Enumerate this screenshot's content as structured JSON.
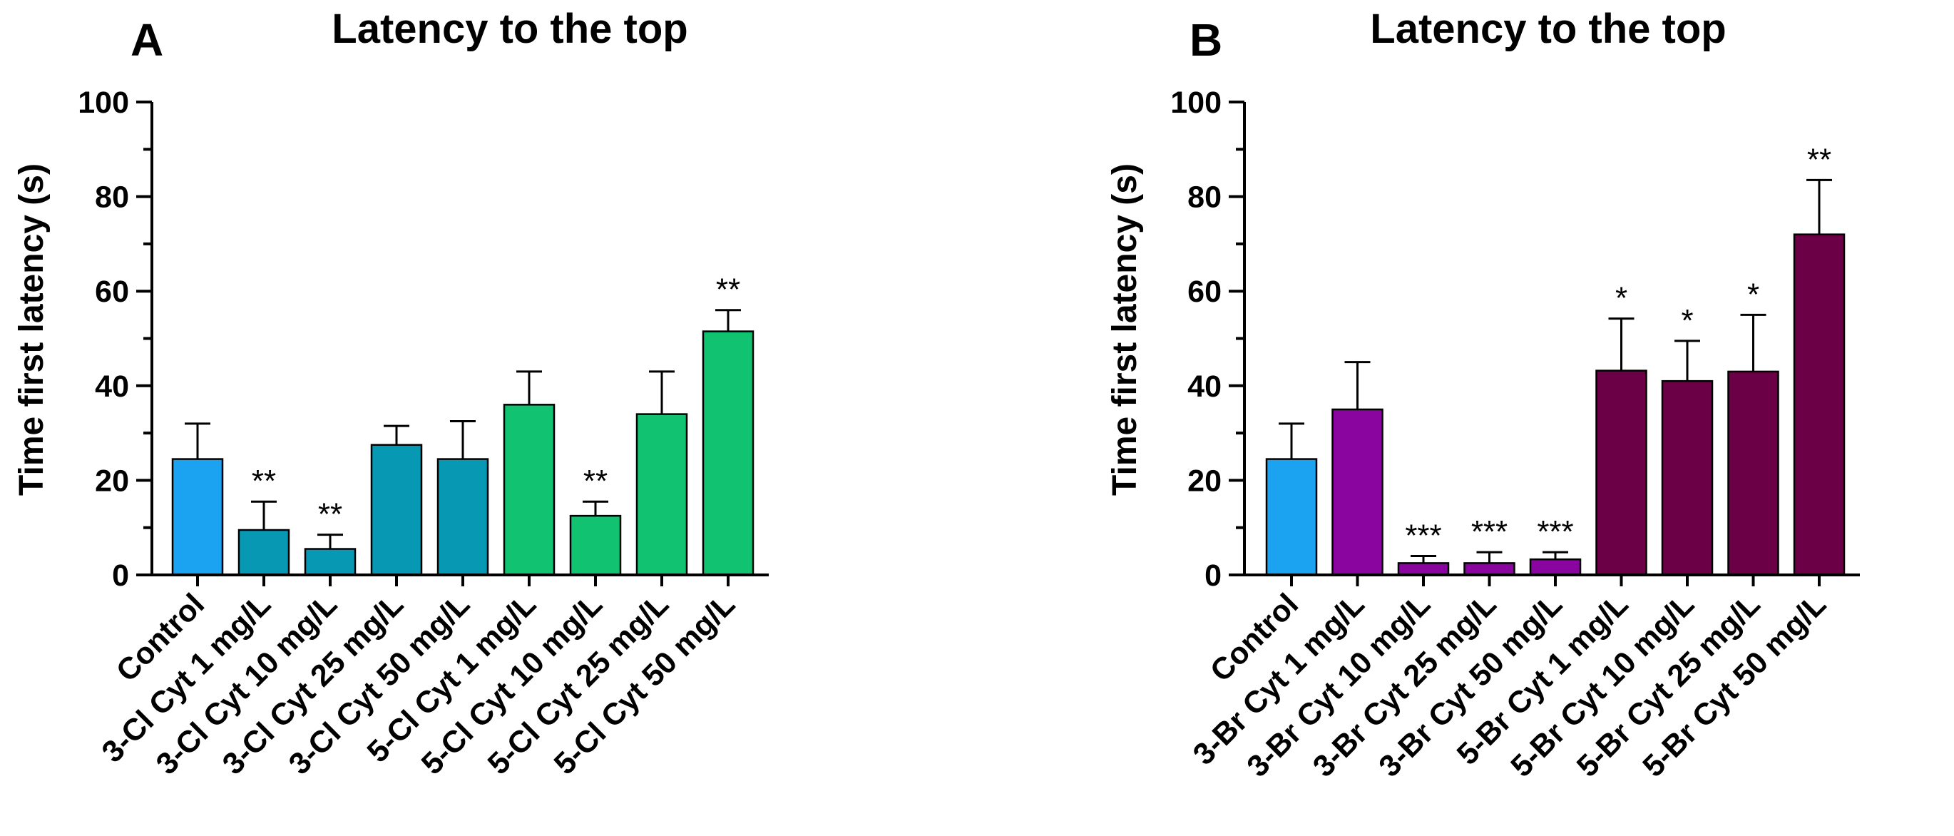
{
  "chart_data": [
    {
      "type": "bar",
      "panel": "A",
      "title": "Latency to the top",
      "ylabel": "Time first latency (s)",
      "xlabel": "",
      "ylim": [
        0,
        100
      ],
      "yticks": [
        0,
        20,
        40,
        60,
        80,
        100
      ],
      "categories": [
        "Control",
        "3-Cl Cyt 1 mg/L",
        "3-Cl Cyt 10 mg/L",
        "3-Cl Cyt 25 mg/L",
        "3-Cl Cyt 50 mg/L",
        "5-Cl Cyt 1 mg/L",
        "5-Cl Cyt 10 mg/L",
        "5-Cl Cyt 25 mg/L",
        "5-Cl Cyt 50 mg/L"
      ],
      "values": [
        24.5,
        9.5,
        5.5,
        27.5,
        24.5,
        36,
        12.5,
        34,
        51.5
      ],
      "errors": [
        7.5,
        6,
        3,
        4,
        8,
        7,
        3,
        9,
        4.5
      ],
      "significance": [
        "",
        "**",
        "**",
        "",
        "",
        "",
        "**",
        "",
        "**"
      ],
      "colors": [
        "#1ba3f2",
        "#0798b4",
        "#0798b4",
        "#0798b4",
        "#0798b4",
        "#11c271",
        "#11c271",
        "#11c271",
        "#11c271"
      ],
      "grid": false
    },
    {
      "type": "bar",
      "panel": "B",
      "title": "Latency to the top",
      "ylabel": "Time first latency (s)",
      "xlabel": "",
      "ylim": [
        0,
        100
      ],
      "yticks": [
        0,
        20,
        40,
        60,
        80,
        100
      ],
      "categories": [
        "Control",
        "3-Br Cyt 1 mg/L",
        "3-Br Cyt 10 mg/L",
        "3-Br Cyt 25 mg/L",
        "3-Br Cyt 50 mg/L",
        "5-Br Cyt 1 mg/L",
        "5-Br Cyt 10 mg/L",
        "5-Br Cyt 25 mg/L",
        "5-Br Cyt 50 mg/L"
      ],
      "values": [
        24.5,
        35,
        2.5,
        2.5,
        3.3,
        43.2,
        41,
        43,
        72
      ],
      "errors": [
        7.5,
        10,
        1.5,
        2.3,
        1.5,
        11,
        8.5,
        12,
        11.5
      ],
      "significance": [
        "",
        "",
        "***",
        "***",
        "***",
        "*",
        "*",
        "*",
        "**"
      ],
      "colors": [
        "#1ba3f2",
        "#8a04a0",
        "#8a04a0",
        "#8a04a0",
        "#8a04a0",
        "#6c0046",
        "#6c0046",
        "#6c0046",
        "#6c0046"
      ],
      "grid": false
    }
  ]
}
